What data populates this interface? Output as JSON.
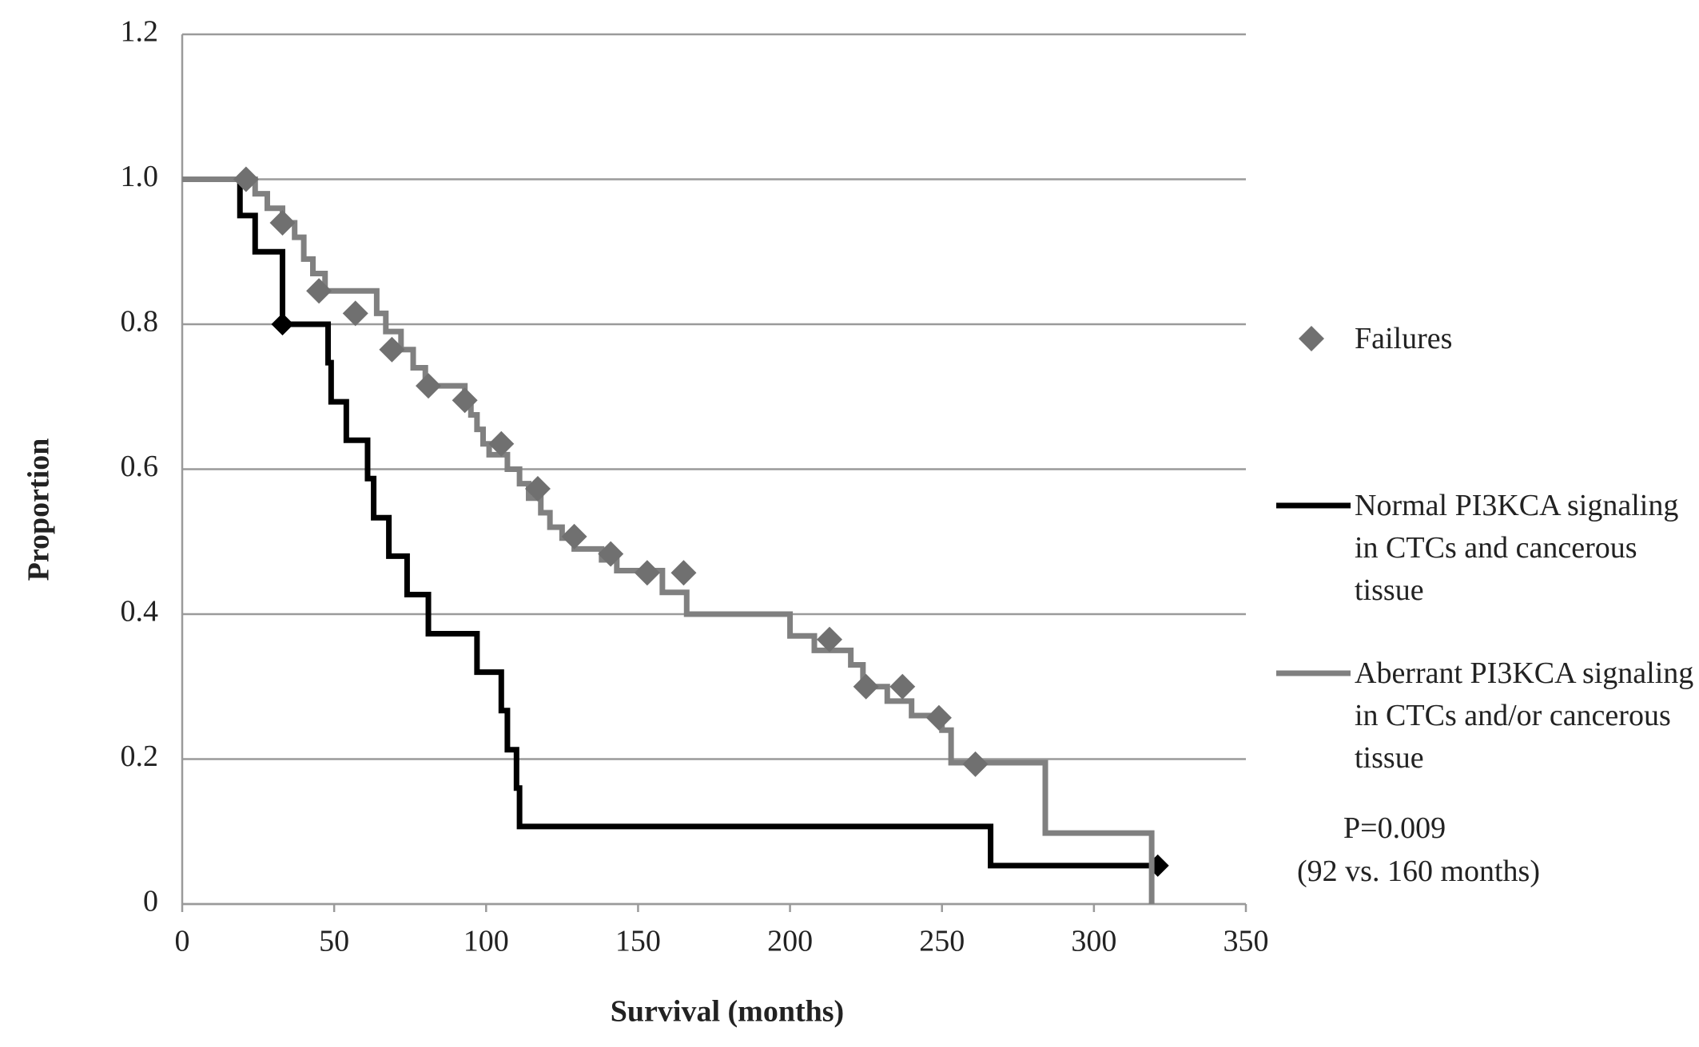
{
  "chart_data": {
    "type": "step",
    "xlabel": "Survival (months)",
    "ylabel": "Proportion",
    "xlim": [
      0,
      350
    ],
    "xticks": [
      0,
      50,
      100,
      150,
      200,
      250,
      300,
      350
    ],
    "ylim": [
      0,
      1.2
    ],
    "yticks": [
      0,
      0.2,
      0.4,
      0.6,
      {
        "value": 1,
        "label": "1.0"
      },
      0.8,
      1.2
    ],
    "grid": true,
    "series": [
      {
        "name": "Normal PI3KCA signaling in CTCs and cancerous tissue",
        "color": "#000000",
        "x": [
          0,
          19,
          24,
          33,
          48,
          49,
          54,
          61,
          63,
          68,
          74,
          81,
          97,
          105,
          107,
          110,
          111,
          266,
          321
        ],
        "values": [
          1,
          0.95,
          0.9,
          0.8,
          0.747,
          0.693,
          0.64,
          0.587,
          0.533,
          0.48,
          0.427,
          0.373,
          0.32,
          0.267,
          0.213,
          0.16,
          0.107,
          0.053,
          0.053
        ],
        "markers": {
          "color": "#000000",
          "x": [
            33,
            321
          ],
          "values": [
            0.8,
            0.053
          ]
        }
      },
      {
        "name": "Aberrant PI3KCA signaling in CTCs and/or cancerous tissue",
        "color": "#808080",
        "x": [
          0,
          24,
          28,
          33,
          37,
          40,
          43,
          47,
          64,
          67,
          72,
          76,
          80,
          93,
          95,
          97,
          99,
          101,
          107,
          111,
          114,
          118,
          121,
          125,
          129,
          138,
          143,
          158,
          166,
          175,
          200,
          208,
          220,
          224,
          232,
          240,
          250,
          253,
          284,
          319
        ],
        "values": [
          1,
          0.98,
          0.96,
          0.94,
          0.92,
          0.89,
          0.87,
          0.846,
          0.815,
          0.79,
          0.765,
          0.74,
          0.715,
          0.695,
          0.675,
          0.655,
          0.635,
          0.62,
          0.6,
          0.58,
          0.56,
          0.54,
          0.52,
          0.505,
          0.49,
          0.475,
          0.46,
          0.43,
          0.4,
          0.4,
          0.37,
          0.35,
          0.33,
          0.3,
          0.28,
          0.26,
          0.24,
          0.195,
          0.098,
          0
        ]
      }
    ],
    "failures": {
      "name": "Failures",
      "color": "#707070",
      "x": [
        21,
        33,
        45,
        57,
        69,
        81,
        93,
        105,
        117,
        129,
        141,
        153,
        165,
        213,
        225,
        237,
        249,
        261
      ],
      "values": [
        1,
        0.94,
        0.846,
        0.815,
        0.765,
        0.715,
        0.695,
        0.635,
        0.573,
        0.507,
        0.483,
        0.457,
        0.457,
        0.365,
        0.3,
        0.3,
        0.257,
        0.193
      ]
    },
    "annotations": [
      "P=0.009",
      "(92 vs. 160 months)"
    ]
  }
}
